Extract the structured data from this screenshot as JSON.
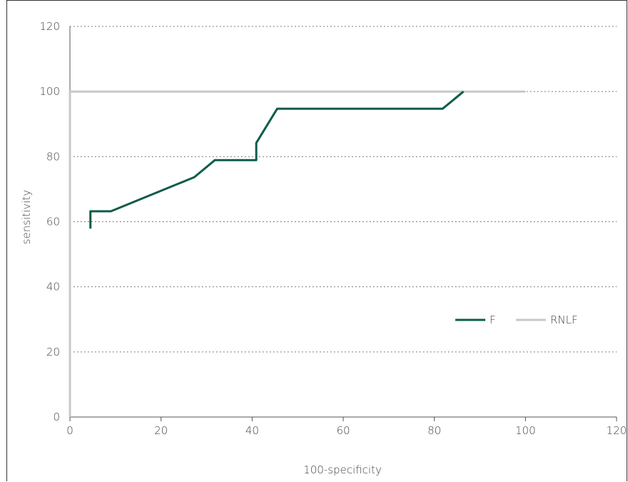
{
  "chart_data": {
    "type": "line",
    "title": "",
    "xlabel": "100-specificity",
    "ylabel": "sensitivity",
    "xlim": [
      0,
      120
    ],
    "ylim": [
      0,
      120
    ],
    "xticks": [
      0,
      20,
      40,
      60,
      80,
      100,
      120
    ],
    "yticks": [
      0,
      20,
      40,
      60,
      80,
      100,
      120
    ],
    "grid": "horizontal-dotted",
    "legend_position": "lower-right",
    "series": [
      {
        "name": "F",
        "color": "#0d5c4b",
        "x": [
          4.5,
          4.5,
          9,
          27.3,
          31.8,
          40.9,
          40.9,
          45.5,
          81.8,
          86.4
        ],
        "y": [
          57.9,
          63.2,
          63.2,
          73.7,
          78.9,
          78.9,
          84.2,
          94.7,
          94.7,
          100
        ]
      },
      {
        "name": "RNLF",
        "color": "#c8c8c8",
        "x": [
          0,
          0,
          100
        ],
        "y": [
          0,
          100,
          100
        ]
      }
    ]
  }
}
